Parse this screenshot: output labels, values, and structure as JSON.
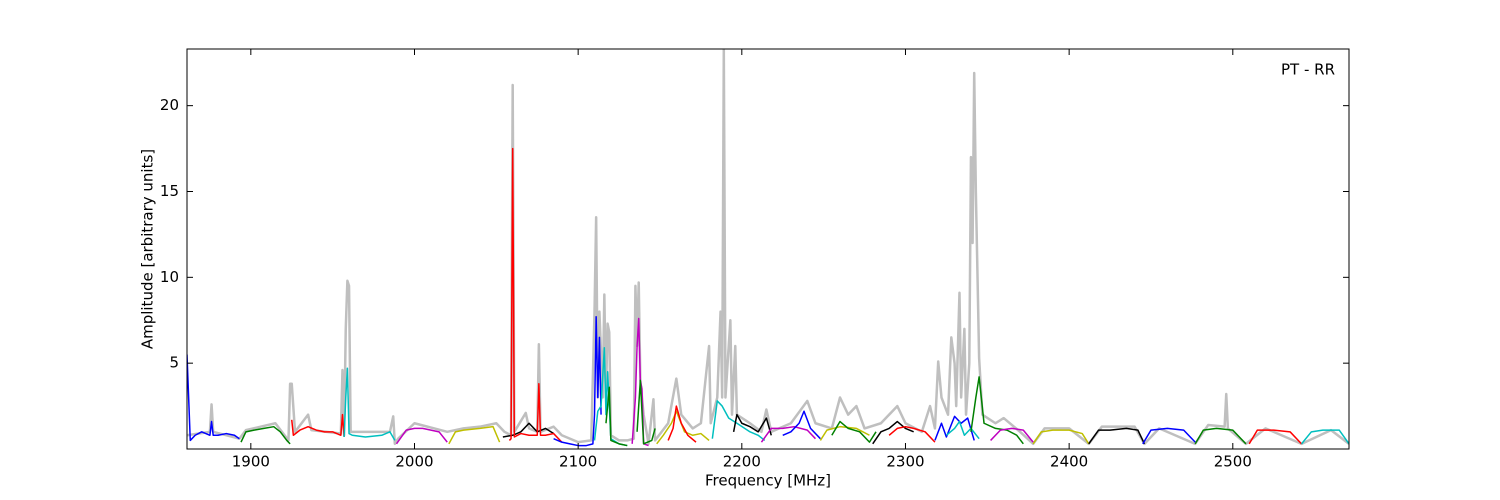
{
  "chart_data": {
    "type": "line",
    "annotation": "PT - RR",
    "x_label": "Frequency [MHz]",
    "y_label": "Amplitude [arbitrary units]",
    "xlim": [
      1861,
      2571
    ],
    "ylim": [
      0,
      23.3
    ],
    "xticks": [
      1900,
      2000,
      2100,
      2200,
      2300,
      2400,
      2500
    ],
    "yticks": [
      5,
      10,
      15,
      20
    ],
    "series": [
      {
        "color": "#bfbfbf",
        "x": [
          1861,
          1875,
          1876,
          1877,
          1893,
          1897,
          1915,
          1923,
          1924,
          1925,
          1927,
          1935,
          1937,
          1955,
          1956,
          1957,
          1958,
          1959,
          1960,
          1961,
          1985,
          1987,
          1988,
          1990,
          2000,
          2020,
          2030,
          2040,
          2050,
          2055,
          2059,
          2060,
          2061,
          2068,
          2070,
          2075,
          2076,
          2077,
          2085,
          2090,
          2100,
          2108,
          2110,
          2111,
          2112,
          2113,
          2115,
          2116,
          2117,
          2118,
          2119,
          2120,
          2125,
          2130,
          2134,
          2135,
          2136,
          2137,
          2138,
          2140,
          2143,
          2146,
          2147,
          2155,
          2160,
          2163,
          2170,
          2175,
          2180,
          2181,
          2185,
          2187,
          2188,
          2189,
          2190,
          2193,
          2194,
          2196,
          2197,
          2205,
          2212,
          2215,
          2218,
          2230,
          2240,
          2245,
          2255,
          2260,
          2265,
          2270,
          2275,
          2285,
          2295,
          2300,
          2310,
          2315,
          2318,
          2320,
          2322,
          2326,
          2328,
          2330,
          2331,
          2333,
          2334,
          2336,
          2337,
          2339,
          2340,
          2341,
          2342,
          2343,
          2345,
          2347,
          2355,
          2360,
          2370,
          2378,
          2385,
          2400,
          2412,
          2420,
          2440,
          2446,
          2455,
          2477,
          2485,
          2495,
          2496,
          2497,
          2508,
          2520,
          2542,
          2560,
          2571
        ],
        "values": [
          0.8,
          1.0,
          2.6,
          1.0,
          0.6,
          1.1,
          1.5,
          0.5,
          3.8,
          3.8,
          1.0,
          2.0,
          1.1,
          0.9,
          4.6,
          0.8,
          7.0,
          9.8,
          9.5,
          1.0,
          1.0,
          1.9,
          0.3,
          0.6,
          1.5,
          1.0,
          1.2,
          1.3,
          1.5,
          1.0,
          0.8,
          21.2,
          1.0,
          2.1,
          1.2,
          1.0,
          6.1,
          1.0,
          1.3,
          0.8,
          0.4,
          0.5,
          8.0,
          13.5,
          3.0,
          8.0,
          3.0,
          9.0,
          3.0,
          7.3,
          6.8,
          0.8,
          0.5,
          0.5,
          0.6,
          9.5,
          6.0,
          9.7,
          4.0,
          2.0,
          0.3,
          2.9,
          0.5,
          1.5,
          4.1,
          2.0,
          1.2,
          1.5,
          6.0,
          1.5,
          3.0,
          8.0,
          3.0,
          23.3,
          3.0,
          7.5,
          2.0,
          6.0,
          2.0,
          1.5,
          1.0,
          2.3,
          1.0,
          1.5,
          2.8,
          1.5,
          1.2,
          3.0,
          2.0,
          2.5,
          1.2,
          1.5,
          2.5,
          1.5,
          1.0,
          2.5,
          1.2,
          5.1,
          3.0,
          2.0,
          6.5,
          5.0,
          2.5,
          9.1,
          3.0,
          7.0,
          2.0,
          5.0,
          17.0,
          12.0,
          21.9,
          15.0,
          5.3,
          2.0,
          1.5,
          1.8,
          1.0,
          0.3,
          1.2,
          1.2,
          0.3,
          1.3,
          1.3,
          0.3,
          1.2,
          0.3,
          1.4,
          1.3,
          3.2,
          1.2,
          0.3,
          1.2,
          0.3,
          1.1,
          0.3
        ]
      },
      {
        "color": "#0000ff",
        "x": [
          1861,
          1863,
          1866,
          1870,
          1875,
          1876,
          1877,
          1880,
          1885,
          1890,
          1893
        ],
        "values": [
          5.5,
          0.5,
          0.8,
          1.0,
          0.8,
          1.6,
          0.8,
          0.8,
          0.9,
          0.8,
          0.6
        ]
      },
      {
        "color": "#008000",
        "x": [
          1894,
          1897,
          1902,
          1908,
          1914,
          1918,
          1922,
          1924
        ],
        "values": [
          0.4,
          1.0,
          1.1,
          1.2,
          1.3,
          1.0,
          0.5,
          0.3
        ]
      },
      {
        "color": "#ff0000",
        "x": [
          1925,
          1926,
          1930,
          1935,
          1940,
          1945,
          1950,
          1955,
          1956,
          1957
        ],
        "values": [
          1.7,
          0.8,
          1.1,
          1.3,
          1.1,
          1.0,
          1.0,
          0.8,
          2.0,
          0.7
        ]
      },
      {
        "color": "#00bfbf",
        "x": [
          1957,
          1958,
          1959,
          1960,
          1962,
          1970,
          1980,
          1985,
          1988
        ],
        "values": [
          0.7,
          3.0,
          4.7,
          0.9,
          0.8,
          0.7,
          0.8,
          1.0,
          0.5
        ]
      },
      {
        "color": "#bf00bf",
        "x": [
          1989,
          1995,
          2000,
          2005,
          2010,
          2015,
          2020
        ],
        "values": [
          0.3,
          1.1,
          1.2,
          1.2,
          1.1,
          1.0,
          0.4
        ]
      },
      {
        "color": "#bfbf00",
        "x": [
          2021,
          2025,
          2030,
          2040,
          2048,
          2052
        ],
        "values": [
          0.3,
          1.0,
          1.1,
          1.2,
          1.3,
          0.4
        ]
      },
      {
        "color": "#000000",
        "x": [
          2054,
          2060,
          2065,
          2070,
          2075,
          2080,
          2085
        ],
        "values": [
          0.7,
          0.8,
          1.0,
          1.5,
          1.0,
          1.2,
          0.9
        ]
      },
      {
        "color": "#ff0000",
        "x": [
          2058,
          2059,
          2060,
          2061,
          2065,
          2070,
          2075,
          2076,
          2077,
          2080,
          2085,
          2090
        ],
        "values": [
          0.5,
          0.6,
          17.5,
          0.7,
          0.9,
          0.8,
          0.8,
          3.8,
          0.8,
          0.8,
          0.9,
          0.4
        ]
      },
      {
        "color": "#0000ff",
        "x": [
          2085,
          2090,
          2095,
          2100,
          2105,
          2109,
          2110,
          2111,
          2112,
          2113,
          2114
        ],
        "values": [
          0.6,
          0.4,
          0.3,
          0.2,
          0.2,
          0.3,
          2.0,
          7.7,
          3.0,
          6.5,
          2.0
        ]
      },
      {
        "color": "#00bfbf",
        "x": [
          2110,
          2112,
          2114,
          2116,
          2117,
          2118,
          2120,
          2125,
          2130
        ],
        "values": [
          0.5,
          2.2,
          2.5,
          5.9,
          2.0,
          4.5,
          0.6,
          0.3,
          0.2
        ]
      },
      {
        "color": "#008000",
        "x": [
          2117,
          2118,
          2119,
          2120,
          2125,
          2130
        ],
        "values": [
          1.5,
          2.5,
          3.6,
          0.5,
          0.3,
          0.2
        ]
      },
      {
        "color": "#bf00bf",
        "x": [
          2133,
          2135,
          2136,
          2137,
          2138,
          2139,
          2140,
          2143
        ],
        "values": [
          0.3,
          3.0,
          6.0,
          7.6,
          4.0,
          3.5,
          0.3,
          0.2
        ]
      },
      {
        "color": "#008000",
        "x": [
          2136,
          2138,
          2140,
          2145,
          2147
        ],
        "values": [
          1.0,
          4.0,
          0.3,
          0.5,
          1.2
        ]
      },
      {
        "color": "#bfbf00",
        "x": [
          2148,
          2152,
          2157,
          2160,
          2165,
          2170,
          2175,
          2180
        ],
        "values": [
          0.3,
          0.8,
          1.5,
          2.2,
          1.0,
          0.8,
          0.9,
          0.5
        ]
      },
      {
        "color": "#ff0000",
        "x": [
          2155,
          2158,
          2160,
          2163,
          2167,
          2172
        ],
        "values": [
          0.5,
          1.2,
          2.5,
          1.5,
          0.8,
          0.4
        ]
      },
      {
        "color": "#00bfbf",
        "x": [
          2182,
          2185,
          2188,
          2192,
          2197,
          2205,
          2210,
          2214
        ],
        "values": [
          0.6,
          2.8,
          2.5,
          1.8,
          1.5,
          1.0,
          0.8,
          0.5
        ]
      },
      {
        "color": "#000000",
        "x": [
          2195,
          2197,
          2200,
          2205,
          2210,
          2215,
          2218
        ],
        "values": [
          1.0,
          2.0,
          1.5,
          1.3,
          1.0,
          1.8,
          0.8
        ]
      },
      {
        "color": "#bf00bf",
        "x": [
          2212,
          2218,
          2225,
          2232,
          2240,
          2245
        ],
        "values": [
          0.4,
          1.2,
          1.2,
          1.3,
          1.1,
          0.6
        ]
      },
      {
        "color": "#0000ff",
        "x": [
          2225,
          2230,
          2235,
          2238,
          2242,
          2248
        ],
        "values": [
          0.8,
          1.0,
          1.5,
          2.2,
          1.2,
          0.6
        ]
      },
      {
        "color": "#bfbf00",
        "x": [
          2248,
          2252,
          2260,
          2270,
          2278
        ],
        "values": [
          0.5,
          1.1,
          1.3,
          1.2,
          0.8
        ]
      },
      {
        "color": "#008000",
        "x": [
          2255,
          2260,
          2265,
          2272,
          2278,
          2282
        ],
        "values": [
          0.8,
          1.6,
          1.2,
          1.0,
          0.4,
          1.0
        ]
      },
      {
        "color": "#000000",
        "x": [
          2280,
          2285,
          2290,
          2295,
          2300,
          2305
        ],
        "values": [
          0.3,
          1.0,
          1.2,
          1.6,
          1.2,
          1.0
        ]
      },
      {
        "color": "#ff0000",
        "x": [
          2290,
          2295,
          2300,
          2305,
          2312,
          2318
        ],
        "values": [
          0.8,
          1.2,
          1.3,
          1.2,
          1.0,
          0.4
        ]
      },
      {
        "color": "#0000ff",
        "x": [
          2318,
          2322,
          2325,
          2330,
          2334,
          2338,
          2342
        ],
        "values": [
          0.5,
          1.5,
          0.7,
          1.9,
          1.5,
          1.8,
          0.5
        ]
      },
      {
        "color": "#00bfbf",
        "x": [
          2325,
          2330,
          2333,
          2336,
          2340,
          2345
        ],
        "values": [
          0.8,
          1.2,
          1.6,
          0.8,
          1.2,
          0.6
        ]
      },
      {
        "color": "#008000",
        "x": [
          2340,
          2343,
          2345,
          2348,
          2355,
          2362,
          2368,
          2372
        ],
        "values": [
          1.0,
          3.0,
          4.2,
          1.5,
          1.2,
          1.1,
          0.8,
          0.3
        ]
      },
      {
        "color": "#bf00bf",
        "x": [
          2352,
          2358,
          2365,
          2372,
          2378
        ],
        "values": [
          0.5,
          1.1,
          1.2,
          1.1,
          0.4
        ]
      },
      {
        "color": "#bfbf00",
        "x": [
          2378,
          2383,
          2390,
          2400,
          2408,
          2412
        ],
        "values": [
          0.3,
          1.0,
          1.1,
          1.1,
          0.9,
          0.3
        ]
      },
      {
        "color": "#000000",
        "x": [
          2412,
          2418,
          2425,
          2435,
          2442,
          2446
        ],
        "values": [
          0.3,
          1.1,
          1.1,
          1.2,
          1.1,
          0.3
        ]
      },
      {
        "color": "#0000ff",
        "x": [
          2445,
          2450,
          2460,
          2470,
          2477
        ],
        "values": [
          0.3,
          1.1,
          1.2,
          1.1,
          0.4
        ]
      },
      {
        "color": "#008000",
        "x": [
          2477,
          2482,
          2490,
          2500,
          2508
        ],
        "values": [
          0.3,
          1.1,
          1.2,
          1.1,
          0.3
        ]
      },
      {
        "color": "#ff0000",
        "x": [
          2510,
          2515,
          2525,
          2535,
          2542
        ],
        "values": [
          0.3,
          1.1,
          1.1,
          1.0,
          0.3
        ]
      },
      {
        "color": "#00bfbf",
        "x": [
          2542,
          2548,
          2555,
          2565,
          2571
        ],
        "values": [
          0.3,
          1.0,
          1.1,
          1.1,
          0.3
        ]
      }
    ]
  }
}
